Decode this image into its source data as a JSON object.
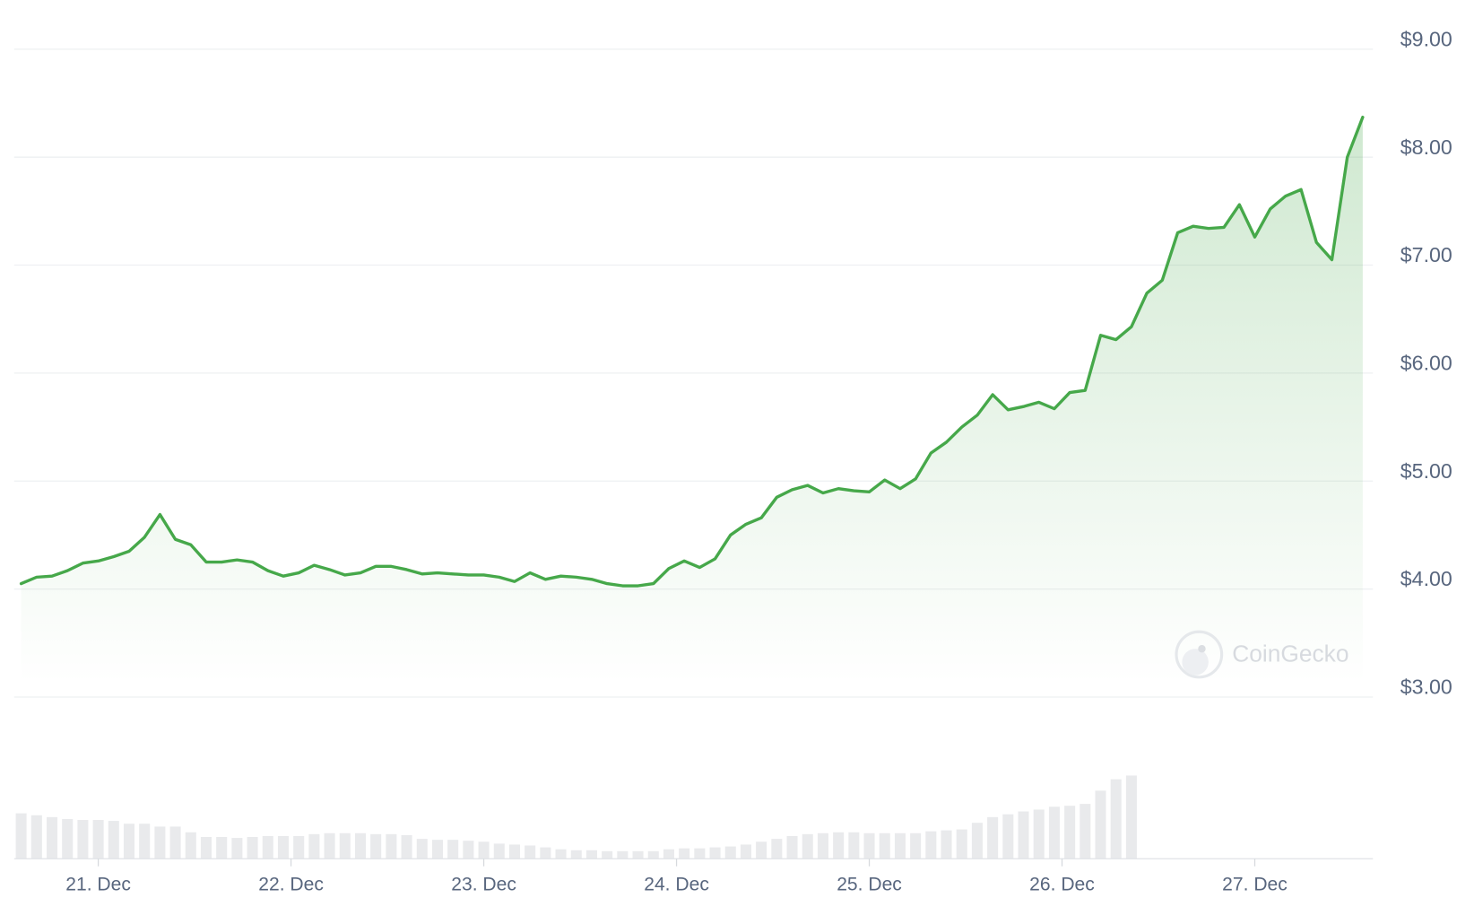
{
  "chart_data": {
    "type": "line",
    "color": "#46a84a",
    "volume_color": "#e9eaec",
    "watermark": "CoinGecko",
    "grid": true,
    "xlim": [
      20.6,
      27.6
    ],
    "xticks": [
      {
        "value": 21,
        "label": "21. Dec"
      },
      {
        "value": 22,
        "label": "22. Dec"
      },
      {
        "value": 23,
        "label": "23. Dec"
      },
      {
        "value": 24,
        "label": "24. Dec"
      },
      {
        "value": 25,
        "label": "25. Dec"
      },
      {
        "value": 26,
        "label": "26. Dec"
      },
      {
        "value": 27,
        "label": "27. Dec"
      }
    ],
    "ylim": [
      3,
      9
    ],
    "yticks": [
      {
        "value": 3,
        "label": "$3.00"
      },
      {
        "value": 4,
        "label": "$4.00"
      },
      {
        "value": 5,
        "label": "$5.00"
      },
      {
        "value": 6,
        "label": "$6.00"
      },
      {
        "value": 7,
        "label": "$7.00"
      },
      {
        "value": 8,
        "label": "$8.00"
      },
      {
        "value": 9,
        "label": "$9.00"
      }
    ],
    "x": [
      20.6,
      20.68,
      20.76,
      20.84,
      20.92,
      21,
      21.08,
      21.16,
      21.24,
      21.32,
      21.4,
      21.48,
      21.56,
      21.64,
      21.72,
      21.8,
      21.88,
      21.96,
      22.04,
      22.12,
      22.2,
      22.28,
      22.36,
      22.44,
      22.52,
      22.6,
      22.68,
      22.76,
      22.84,
      22.92,
      23,
      23.08,
      23.16,
      23.24,
      23.32,
      23.4,
      23.48,
      23.56,
      23.64,
      23.72,
      23.8,
      23.88,
      23.96,
      24.04,
      24.12,
      24.2,
      24.28,
      24.36,
      24.44,
      24.52,
      24.6,
      24.68,
      24.76,
      24.84,
      24.92,
      25,
      25.08,
      25.16,
      25.24,
      25.32,
      25.4,
      25.48,
      25.56,
      25.64,
      25.72,
      25.8,
      25.88,
      25.96,
      26.04,
      26.12,
      26.2,
      26.28,
      26.36,
      26.44,
      26.52,
      26.6,
      26.68,
      26.76,
      26.84,
      26.92,
      27,
      27.08,
      27.16,
      27.24,
      27.32,
      27.4,
      27.48,
      27.56
    ],
    "values": [
      4.05,
      4.11,
      4.12,
      4.17,
      4.24,
      4.26,
      4.3,
      4.35,
      4.48,
      4.69,
      4.46,
      4.41,
      4.25,
      4.25,
      4.27,
      4.25,
      4.17,
      4.12,
      4.15,
      4.22,
      4.18,
      4.13,
      4.15,
      4.21,
      4.21,
      4.18,
      4.14,
      4.15,
      4.14,
      4.13,
      4.13,
      4.11,
      4.07,
      4.15,
      4.09,
      4.12,
      4.11,
      4.09,
      4.05,
      4.03,
      4.03,
      4.05,
      4.19,
      4.26,
      4.2,
      4.28,
      4.5,
      4.6,
      4.66,
      4.85,
      4.92,
      4.96,
      4.89,
      4.93,
      4.91,
      4.9,
      5.01,
      4.93,
      5.02,
      5.26,
      5.36,
      5.5,
      5.61,
      5.8,
      5.66,
      5.69,
      5.73,
      5.67,
      5.82,
      5.84,
      6.35,
      6.31,
      6.43,
      6.74,
      6.86,
      7.3,
      7.36,
      7.34,
      7.35,
      7.56,
      7.26,
      7.52,
      7.64,
      7.7,
      7.21,
      7.05,
      8.0,
      8.37
    ],
    "volume": [
      48,
      46,
      44,
      42,
      41,
      41,
      40,
      37,
      37,
      34,
      34,
      28,
      23,
      23,
      22,
      23,
      24,
      24,
      24,
      26,
      27,
      27,
      27,
      26,
      26,
      25,
      21,
      20,
      20,
      19,
      18,
      16,
      15,
      14,
      12,
      10,
      9,
      9,
      8,
      8,
      8,
      8,
      10,
      11,
      11,
      12,
      13,
      15,
      18,
      21,
      24,
      26,
      27,
      28,
      28,
      27,
      27,
      27,
      27,
      29,
      30,
      31,
      38,
      44,
      47,
      50,
      52,
      55,
      56,
      58,
      72,
      84,
      88,
      null,
      null,
      null,
      null,
      null,
      null,
      null,
      null,
      null,
      null,
      null,
      null,
      null,
      null,
      null
    ]
  }
}
